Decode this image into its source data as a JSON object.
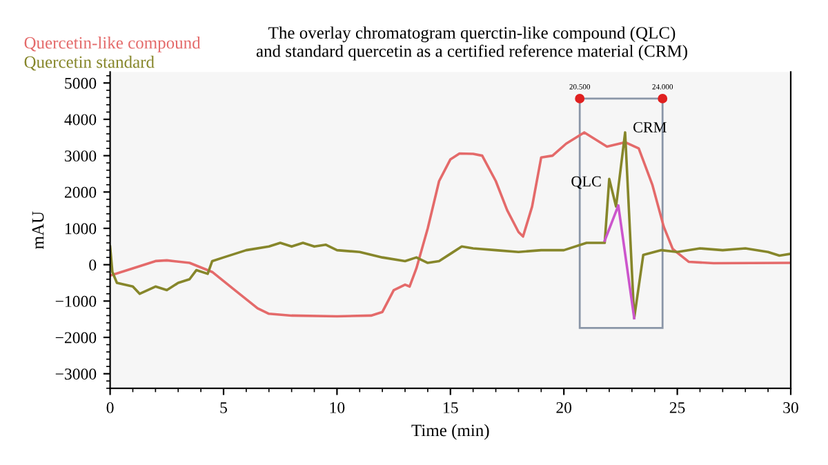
{
  "chart_data": {
    "type": "line",
    "title": "The overlay chromatogram querctin-like compound (QLC)\nand standard quercetin as a certified reference material (CRM)",
    "xlabel": "Time (min)",
    "ylabel": "mAU",
    "xlim": [
      0,
      30
    ],
    "xticks": [
      0,
      5,
      10,
      15,
      20,
      25,
      30
    ],
    "ylim": [
      -3400,
      5300
    ],
    "yticks": [
      -3000,
      -2000,
      -1000,
      0,
      1000,
      2000,
      3000,
      4000,
      5000
    ],
    "grid": false,
    "legend": "top left",
    "marker": "none",
    "line_style": "solid",
    "series": [
      {
        "name": "Quercetin-like compound",
        "color": "#e46a6a",
        "x": [
          0,
          1,
          2,
          2.5,
          3.5,
          4.5,
          5.5,
          6.5,
          7,
          8,
          10,
          11.5,
          12,
          12.5,
          13,
          13.2,
          13.5,
          14,
          14.5,
          15,
          15.4,
          16,
          16.4,
          17,
          17.5,
          18,
          18.2,
          18.6,
          19,
          19.5,
          20.1,
          20.9,
          21.9,
          22.7,
          23.3,
          23.9,
          24.4,
          24.8,
          25.5,
          26.6,
          30
        ],
        "values": [
          -300,
          -100,
          100,
          120,
          50,
          -200,
          -700,
          -1200,
          -1350,
          -1400,
          -1420,
          -1400,
          -1300,
          -700,
          -550,
          -600,
          -100,
          1000,
          2300,
          2900,
          3060,
          3050,
          3000,
          2300,
          1500,
          900,
          775,
          1600,
          2950,
          3000,
          3330,
          3640,
          3250,
          3370,
          3200,
          2200,
          1050,
          430,
          80,
          40,
          50
        ]
      },
      {
        "name": "Quercetin standard",
        "color": "#86862a",
        "x": [
          0,
          0.1,
          0.3,
          1,
          1.3,
          2,
          2.5,
          3,
          3.5,
          3.8,
          4.3,
          4.5,
          5,
          6,
          7,
          7.5,
          8,
          8.5,
          9,
          9.5,
          10,
          11,
          12,
          13,
          13.5,
          14,
          14.5,
          15,
          15.5,
          16,
          17,
          18,
          19,
          20,
          21,
          21.5,
          21.8,
          22.0,
          22.3,
          22.7,
          23.1,
          23.5,
          24.3,
          25,
          26,
          27,
          28,
          29,
          29.5,
          30
        ],
        "values": [
          500,
          -200,
          -500,
          -600,
          -800,
          -600,
          -700,
          -500,
          -400,
          -150,
          -250,
          100,
          200,
          400,
          500,
          600,
          500,
          600,
          500,
          550,
          400,
          350,
          200,
          100,
          200,
          50,
          100,
          300,
          500,
          450,
          400,
          350,
          400,
          400,
          600,
          600,
          600,
          2360,
          1600,
          3640,
          -1470,
          270,
          400,
          350,
          450,
          400,
          450,
          350,
          250,
          300
        ]
      },
      {
        "color": "#cc55cc",
        "x": [
          21.8,
          22.4,
          23.1
        ],
        "values": [
          660,
          1630,
          -1470
        ]
      }
    ],
    "annotations": [
      {
        "text": "QLC",
        "x": 22.0,
        "y": 2360
      },
      {
        "text": "CRM",
        "x": 22.7,
        "y": 3640
      },
      {
        "text": "20.500",
        "x": 20.7,
        "y": 4570
      },
      {
        "text": "24.000",
        "x": 24.35,
        "y": 4570
      }
    ]
  }
}
